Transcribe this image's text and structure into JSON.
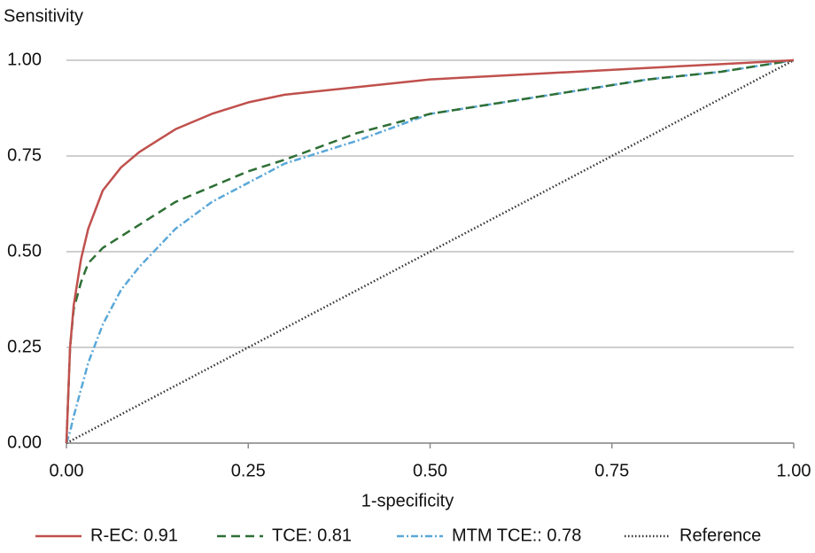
{
  "chart_data": {
    "type": "line",
    "y_label": "Sensitivity",
    "x_label": "1-specificity",
    "x": [
      0,
      0.005,
      0.01,
      0.02,
      0.03,
      0.05,
      0.075,
      0.1,
      0.125,
      0.15,
      0.2,
      0.25,
      0.3,
      0.4,
      0.5,
      0.6,
      0.7,
      0.8,
      0.9,
      1
    ],
    "series": [
      {
        "name": "R-EC: 0.91",
        "color": "#c0504d",
        "dash": "none",
        "values": [
          0,
          0.25,
          0.36,
          0.48,
          0.56,
          0.66,
          0.72,
          0.76,
          0.79,
          0.82,
          0.86,
          0.89,
          0.91,
          0.93,
          0.95,
          0.96,
          0.97,
          0.98,
          0.99,
          1
        ]
      },
      {
        "name": "TCE: 0.81",
        "color": "#2e6f35",
        "dash": "10 6",
        "values": [
          0,
          0.25,
          0.35,
          0.42,
          0.47,
          0.51,
          0.54,
          0.57,
          0.6,
          0.63,
          0.67,
          0.71,
          0.74,
          0.81,
          0.86,
          0.89,
          0.92,
          0.95,
          0.97,
          1
        ]
      },
      {
        "name": "MTM TCE:: 0.78",
        "color": "#5aa8d8",
        "dash": "8 3 2 3",
        "values": [
          0,
          0.03,
          0.07,
          0.14,
          0.21,
          0.31,
          0.4,
          0.46,
          0.51,
          0.56,
          0.63,
          0.68,
          0.73,
          0.79,
          0.86,
          0.89,
          0.92,
          0.95,
          0.97,
          1
        ]
      },
      {
        "name": "Reference",
        "color": "#333333",
        "dash": "1.5 2.5",
        "values": [
          0,
          0.005,
          0.01,
          0.02,
          0.03,
          0.05,
          0.075,
          0.1,
          0.125,
          0.15,
          0.2,
          0.25,
          0.3,
          0.4,
          0.5,
          0.6,
          0.7,
          0.8,
          0.9,
          1
        ]
      }
    ],
    "xlim": [
      0,
      1
    ],
    "ylim": [
      0,
      1
    ],
    "xticks": [
      {
        "value": 0,
        "label": "0.00"
      },
      {
        "value": 0.25,
        "label": "0.25"
      },
      {
        "value": 0.5,
        "label": "0.50"
      },
      {
        "value": 0.75,
        "label": "0.75"
      },
      {
        "value": 1,
        "label": "1.00"
      }
    ],
    "yticks": [
      {
        "value": 0,
        "label": "0.00"
      },
      {
        "value": 0.25,
        "label": "0.25"
      },
      {
        "value": 0.5,
        "label": "0.50"
      },
      {
        "value": 0.75,
        "label": "0.75"
      },
      {
        "value": 1,
        "label": "1.00"
      }
    ],
    "grid": true,
    "legend": "bottom"
  }
}
